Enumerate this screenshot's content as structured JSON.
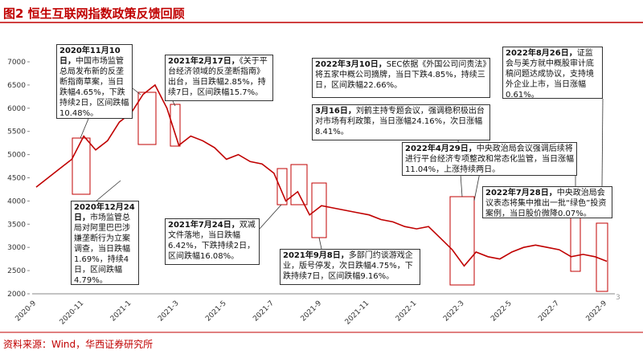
{
  "title": "图2 恒生互联网指数政策反馈回顾",
  "source": "资料来源：Wind，华西证券研究所",
  "page_number": "3",
  "chart_data": {
    "type": "line",
    "color": "#c00000",
    "categories": [
      "2020-9",
      null,
      null,
      null,
      "2020-11",
      null,
      null,
      null,
      "2021-1",
      null,
      null,
      null,
      "2021-3",
      null,
      null,
      null,
      "2021-5",
      null,
      null,
      null,
      "2021-7",
      null,
      null,
      null,
      "2021-9",
      null,
      null,
      null,
      "2021-11",
      null,
      null,
      null,
      "2022-1",
      null,
      null,
      null,
      "2022-3",
      null,
      null,
      null,
      "2022-5",
      null,
      null,
      null,
      "2022-7",
      null,
      null,
      null,
      "2022-9"
    ],
    "values": [
      4300,
      4500,
      4700,
      4900,
      5400,
      5100,
      5300,
      5700,
      5900,
      6300,
      6500,
      6000,
      5200,
      5400,
      5300,
      5150,
      4900,
      5000,
      4850,
      4800,
      4600,
      4000,
      4200,
      3700,
      3900,
      3850,
      3800,
      3750,
      3700,
      3600,
      3550,
      3450,
      3400,
      3450,
      3200,
      2950,
      2600,
      2900,
      2800,
      2750,
      2900,
      3000,
      3050,
      3000,
      2950,
      2800,
      2850,
      2800,
      2700
    ],
    "ylim": [
      2000,
      7000
    ],
    "yticks": [
      2000,
      2500,
      3000,
      3500,
      4000,
      4500,
      5000,
      5500,
      6000,
      6500,
      7000
    ],
    "annotations": [
      {
        "date": "2020年11月10日，",
        "text": "中国市场监管总局发布新的反垄断指南草案，当日跌幅4.65%，下跌持续2日，区间跌幅10.48%。"
      },
      {
        "date": "2021年2月17日，",
        "text": "《关于平台经济领域的反垄断指南》出台，当日跌幅2.85%，持续7日，区间跌幅15.7%。"
      },
      {
        "date": "2022年3月10日，",
        "text": "SEC依据《外国公司问责法》将五家中概公司摘牌，当日下跌4.85%，持续三日，区间跌幅22.66%。"
      },
      {
        "date": "3月16日，",
        "text": "刘鹤主持专题会议，强调稳积极出台对市场有利政策，当日涨幅24.16%，次日涨幅8.41%。"
      },
      {
        "date": "2022年8月26日，",
        "text": "证监会与美方就中概股审计底稿问题达成协议，支持境外企业上市，当日涨幅0.61%。"
      },
      {
        "date": "2022年4月29日，",
        "text": "中央政治局会议强调后续将进行平台经济专项整改和常态化监管，当日涨幅11.04%，上涨持续两日。"
      },
      {
        "date": "2022年7月28日，",
        "text": "中央政治局会议表态将集中推出一批“绿色”投资案例，当日股价微降0.07%。"
      },
      {
        "date": "2020年12月24日，",
        "text": "市场监管总局对阿里巴巴涉嫌垄断行为立案调查，当日跌幅1.69%，持续4日，区间跌幅4.79%。"
      },
      {
        "date": "2021年7月24日，",
        "text": "双减文件落地，当日跌幅6.42%，下跌持续2日，区间跌幅16.08%。"
      },
      {
        "date": "2021年9月8日，",
        "text": "多部门约谈游戏企业，版号停发，次日跌幅4.75%，下跌持续7日，区间跌幅9.16%。"
      }
    ]
  }
}
